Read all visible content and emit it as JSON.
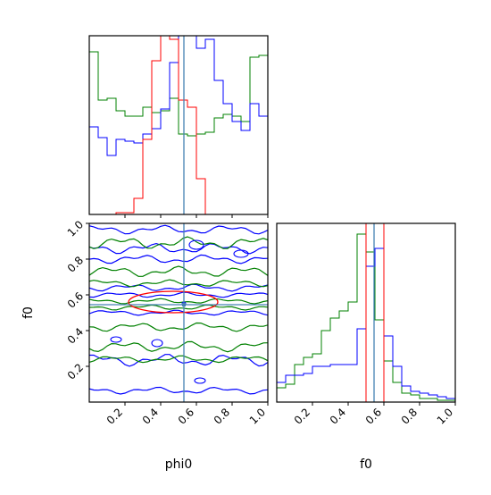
{
  "chart_data": {
    "type": "corner",
    "parameters": [
      "phi0",
      "f0"
    ],
    "truth": {
      "phi0": 0.53,
      "f0": 0.545
    },
    "truth_color": "#4682b4",
    "series_colors": {
      "red": "#ff0000",
      "blue": "#0000ff",
      "green": "#008000"
    },
    "axes": {
      "phi0": {
        "range": [
          0,
          1
        ],
        "ticks": [
          0.2,
          0.4,
          0.6,
          0.8,
          1.0
        ],
        "tick_labels": [
          "0.2",
          "0.4",
          "0.6",
          "0.8",
          "1.0"
        ],
        "xlabel": "phi0"
      },
      "f0": {
        "range": [
          0,
          1
        ],
        "ticks": [
          0.2,
          0.4,
          0.6,
          0.8,
          1.0
        ],
        "tick_labels": [
          "0.2",
          "0.4",
          "0.6",
          "0.8",
          "1.0"
        ],
        "xlabel": "f0",
        "ylabel": "f0"
      }
    },
    "hist_phi0": {
      "bins": 20,
      "blue": [
        0.49,
        0.43,
        0.33,
        0.42,
        0.41,
        0.4,
        0.45,
        0.48,
        0.59,
        0.85,
        1.02,
        1.02,
        0.93,
        0.98,
        0.75,
        0.62,
        0.52,
        0.47,
        0.62,
        0.55
      ],
      "green": [
        0.91,
        0.64,
        0.65,
        0.58,
        0.55,
        0.55,
        0.6,
        0.57,
        0.58,
        0.65,
        0.45,
        0.44,
        0.45,
        0.46,
        0.54,
        0.56,
        0.55,
        0.52,
        0.88,
        0.89
      ],
      "red": [
        0,
        0,
        0,
        0.01,
        0.01,
        0.09,
        0.42,
        0.86,
        1.03,
        0.98,
        0.64,
        0.6,
        0.2,
        0.0,
        0,
        0,
        0,
        0,
        0,
        0
      ]
    },
    "hist_f0": {
      "bins": 20,
      "blue": [
        0.11,
        0.15,
        0.15,
        0.16,
        0.2,
        0.2,
        0.21,
        0.21,
        0.21,
        0.41,
        0.76,
        0.86,
        0.37,
        0.2,
        0.09,
        0.06,
        0.05,
        0.04,
        0.03,
        0.02
      ],
      "green": [
        0.08,
        0.1,
        0.21,
        0.25,
        0.27,
        0.4,
        0.47,
        0.51,
        0.56,
        0.94,
        0.84,
        0.46,
        0.23,
        0.11,
        0.05,
        0.04,
        0.02,
        0.02,
        0.01,
        0.01
      ],
      "red": [
        0,
        0,
        0,
        0,
        0,
        0,
        0,
        0,
        0,
        0,
        1.02,
        1.02,
        0,
        0,
        0,
        0,
        0,
        0,
        0,
        0
      ]
    }
  }
}
